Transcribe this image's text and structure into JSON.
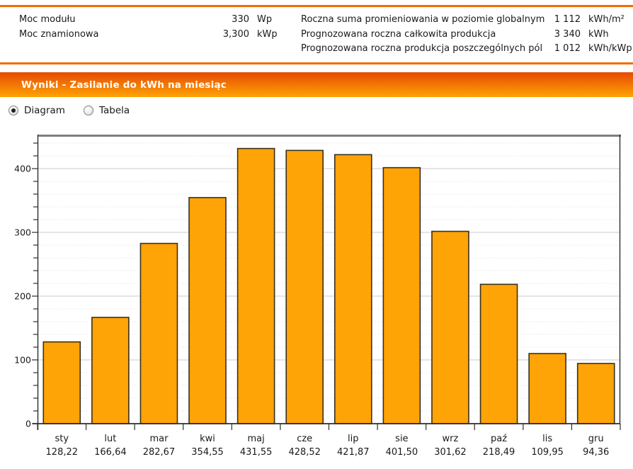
{
  "params": {
    "left": [
      {
        "label": "Moc modułu",
        "value": "330",
        "unit": "Wp"
      },
      {
        "label": "Moc znamionowa",
        "value": "3,300",
        "unit": "kWp"
      }
    ],
    "right": [
      {
        "label": "Roczna suma promieniowania w poziomie globalnym",
        "value": "1 112",
        "unit": "kWh/m²"
      },
      {
        "label": "Prognozowana roczna całkowita produkcja",
        "value": "3 340",
        "unit": "kWh"
      },
      {
        "label": "Prognozowana roczna produkcja poszczególnych pól",
        "value": "1 012",
        "unit": "kWh/kWp"
      }
    ]
  },
  "section": {
    "title": "Wyniki - Zasilanie do kWh na miesiąc"
  },
  "view_toggle": {
    "options": [
      {
        "label": "Diagram",
        "selected": true
      },
      {
        "label": "Tabela",
        "selected": false
      }
    ]
  },
  "chart_data": {
    "type": "bar",
    "title": "",
    "xlabel": "",
    "ylabel": "",
    "categories": [
      "sty",
      "lut",
      "mar",
      "kwi",
      "maj",
      "cze",
      "lip",
      "sie",
      "wrz",
      "paź",
      "lis",
      "gru"
    ],
    "values": [
      128.22,
      166.64,
      282.67,
      354.55,
      431.55,
      428.52,
      421.87,
      401.5,
      301.62,
      218.49,
      109.95,
      94.36
    ],
    "value_labels": [
      "128,22",
      "166,64",
      "282,67",
      "354,55",
      "431,55",
      "428,52",
      "421,87",
      "401,50",
      "301,62",
      "218,49",
      "109,95",
      "94,36"
    ],
    "unit": "kWh",
    "ylim": [
      0,
      450
    ],
    "yticks": [
      0,
      100,
      200,
      300,
      400
    ],
    "minor_step": 20,
    "grid": true,
    "legend": "none"
  },
  "colors": {
    "accent_rule": "#ED6E05",
    "header_gradient_top": "#E64A02",
    "header_gradient_bottom": "#FFA405",
    "header_text": "#FFFFFF",
    "bar_fill": "#FFA407",
    "bar_border": "#38301E",
    "grid_major": "#D5D5D5",
    "grid_minor": "#E4E4E4",
    "axis": "#2E2E2E",
    "plot_top_border": "#7F7F7F",
    "text": "#1A1A1A"
  }
}
